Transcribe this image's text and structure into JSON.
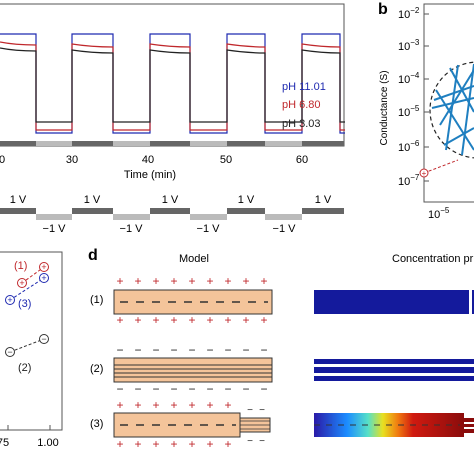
{
  "panels": {
    "a": {
      "x_label": "Time (min)",
      "x_ticks": [
        "0",
        "30",
        "40",
        "50",
        "60"
      ],
      "legend": [
        {
          "text": "pH 11.01",
          "color": "#1f2ab0"
        },
        {
          "text": "pH 6.80",
          "color": "#c0282c"
        },
        {
          "text": "pH 3.03",
          "color": "#222222"
        }
      ],
      "voltage_labels": [
        "1 V",
        "1 V",
        "1 V",
        "1 V",
        "1 V",
        "−1 V",
        "−1 V",
        "−1 V",
        "−1 V"
      ]
    },
    "b": {
      "letter": "b",
      "y_label": "Conductance (S)",
      "y_ticks": [
        "10",
        "10",
        "10",
        "10",
        "10",
        "10",
        "10"
      ],
      "y_exponents": [
        "−2",
        "−3",
        "−4",
        "−5",
        "−6",
        "−7",
        ""
      ],
      "x_tick": "10",
      "x_tick_exp": "−5"
    },
    "c": {
      "x_ticks": [
        "75",
        "1.00"
      ],
      "labels": [
        "(1)",
        "(3)",
        "(2)"
      ]
    },
    "d": {
      "letter": "d",
      "col_model": "Model",
      "col_concentration": "Concentration pr",
      "rows": [
        "(1)",
        "(2)",
        "(3)"
      ]
    }
  }
}
